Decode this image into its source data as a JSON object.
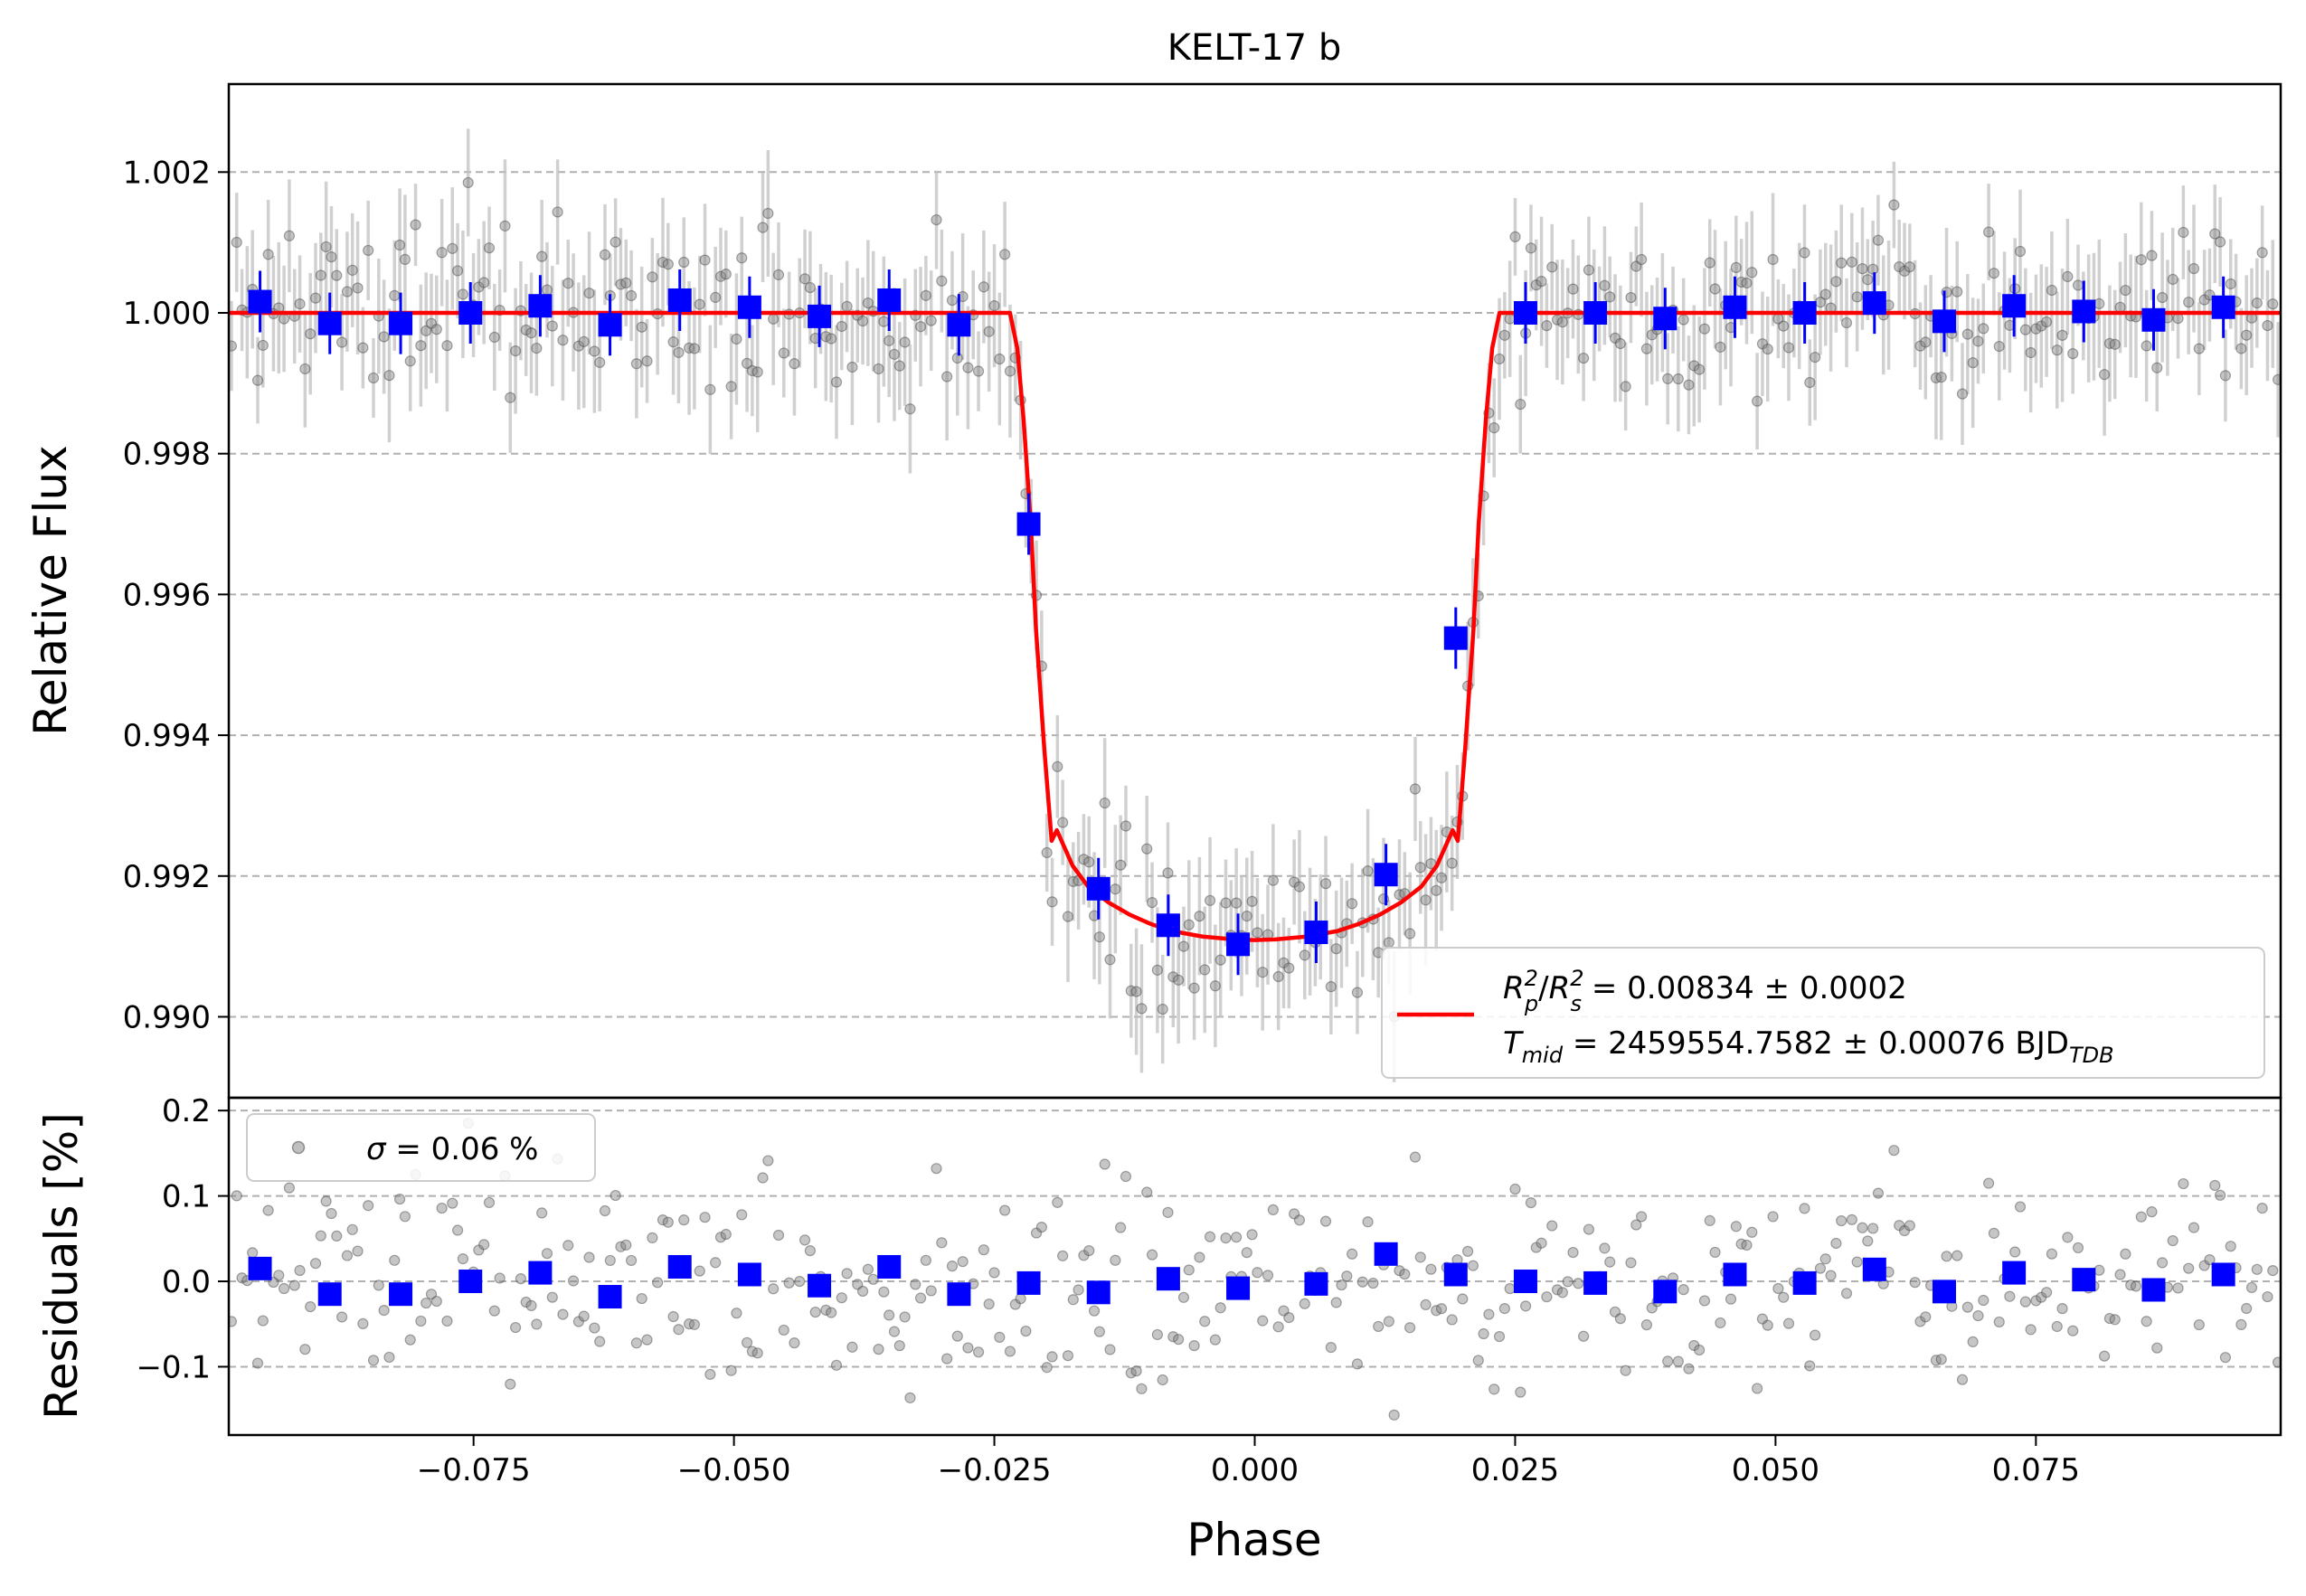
{
  "chart_data": [
    {
      "type": "scatter",
      "title": "KELT-17 b",
      "xlabel": "",
      "ylabel": "Relative Flux",
      "xlim": [
        -0.0985,
        0.0985
      ],
      "ylim": [
        0.98885,
        1.00325
      ],
      "grid": "horizontal dashed",
      "legend_placement": "lower-right",
      "yticks": [
        0.99,
        0.992,
        0.994,
        0.996,
        0.998,
        1.0,
        1.002
      ],
      "ytick_labels": [
        "0.990",
        "0.992",
        "0.994",
        "0.996",
        "0.998",
        "1.000",
        "1.002"
      ],
      "legend": {
        "line1_lhs_num": "R",
        "line1_lhs_num_sup": "2",
        "line1_lhs_num_sub": "p",
        "line1_lhs_den": "R",
        "line1_lhs_den_sup": "2",
        "line1_lhs_den_sub": "s",
        "line1_rhs": " = 0.00834 ± 0.0002",
        "line2_sym": "T",
        "line2_sub": "mid",
        "line2_rhs": " = 2459554.7582 ± 0.00076 BJD",
        "line2_unit_sub": "TDB"
      },
      "series": [
        {
          "kind": "model",
          "color": "#ff0000",
          "x": [
            -0.0985,
            -0.0235,
            -0.0228,
            -0.0222,
            -0.0215,
            -0.021,
            -0.0202,
            -0.0195,
            -0.019,
            -0.0175,
            -0.016,
            -0.014,
            -0.012,
            -0.01,
            -0.008,
            -0.005,
            -0.002,
            0.0,
            0.002,
            0.005,
            0.008,
            0.01,
            0.012,
            0.014,
            0.016,
            0.0175,
            0.019,
            0.0195,
            0.0202,
            0.021,
            0.0215,
            0.0222,
            0.0228,
            0.0235,
            0.0985
          ],
          "y": [
            1.0,
            1.0,
            0.9995,
            0.9985,
            0.997,
            0.9955,
            0.9938,
            0.9925,
            0.99265,
            0.99215,
            0.99185,
            0.99162,
            0.99145,
            0.99132,
            0.99122,
            0.99114,
            0.9911,
            0.99109,
            0.9911,
            0.99114,
            0.99122,
            0.99132,
            0.99145,
            0.99162,
            0.99185,
            0.99215,
            0.99265,
            0.9925,
            0.9938,
            0.9955,
            0.997,
            0.9985,
            0.9995,
            1.0,
            1.0
          ]
        },
        {
          "kind": "binned",
          "color": "#0000ff",
          "x": [
            -0.0955,
            -0.0888,
            -0.082,
            -0.0753,
            -0.0686,
            -0.0619,
            -0.0552,
            -0.0485,
            -0.0418,
            -0.0351,
            -0.0284,
            -0.0217,
            -0.015,
            -0.0083,
            -0.0016,
            0.0059,
            0.0126,
            0.0193,
            0.026,
            0.0327,
            0.0394,
            0.0461,
            0.0528,
            0.0595,
            0.0662,
            0.0729,
            0.0796,
            0.0863,
            0.093
          ],
          "y": [
            1.00016,
            0.99985,
            0.99985,
            1.0,
            1.0001,
            0.99983,
            1.00018,
            1.00008,
            0.99995,
            1.00018,
            0.99983,
            0.997,
            0.99182,
            0.9913,
            0.99103,
            0.9912,
            0.99202,
            0.99538,
            1.0,
            1.0,
            0.99992,
            1.00008,
            1.0,
            1.00014,
            0.99988,
            1.0001,
            1.00002,
            0.9999,
            1.00008
          ]
        },
        {
          "kind": "raw",
          "color": "#808080",
          "error_bar_color": "#c0c0c0",
          "n_points": 390
        }
      ]
    },
    {
      "type": "scatter",
      "title": "",
      "xlabel": "Phase",
      "ylabel": "Residuals [%]",
      "xlim": [
        -0.0985,
        0.0985
      ],
      "ylim": [
        -0.18,
        0.215
      ],
      "grid": "horizontal dashed",
      "legend_placement": "upper-left",
      "xticks": [
        -0.075,
        -0.05,
        -0.025,
        0.0,
        0.025,
        0.05,
        0.075
      ],
      "xtick_labels": [
        "−0.075",
        "−0.050",
        "−0.025",
        "0.000",
        "0.025",
        "0.050",
        "0.075"
      ],
      "yticks": [
        -0.1,
        0.0,
        0.1,
        0.2
      ],
      "ytick_labels": [
        "−0.1",
        "0.0",
        "0.1",
        "0.2"
      ],
      "legend": {
        "sigma_symbol": "σ",
        "sigma_text": " = 0.06 %"
      },
      "series": [
        {
          "kind": "binned",
          "color": "#0000ff",
          "x": [
            -0.0955,
            -0.0888,
            -0.082,
            -0.0753,
            -0.0686,
            -0.0619,
            -0.0552,
            -0.0485,
            -0.0418,
            -0.0351,
            -0.0284,
            -0.0217,
            -0.015,
            -0.0083,
            -0.0016,
            0.0059,
            0.0126,
            0.0193,
            0.026,
            0.0327,
            0.0394,
            0.0461,
            0.0528,
            0.0595,
            0.0662,
            0.0729,
            0.0796,
            0.0863,
            0.093
          ],
          "y": [
            0.015,
            -0.015,
            -0.015,
            0.0,
            0.01,
            -0.018,
            0.017,
            0.008,
            -0.005,
            0.017,
            -0.015,
            -0.002,
            -0.013,
            0.003,
            -0.008,
            -0.003,
            0.032,
            0.008,
            0.0,
            -0.002,
            -0.012,
            0.008,
            -0.002,
            0.014,
            -0.012,
            0.01,
            0.002,
            -0.01,
            0.008
          ]
        },
        {
          "kind": "raw",
          "color": "#808080",
          "n_points": 390
        }
      ]
    }
  ]
}
